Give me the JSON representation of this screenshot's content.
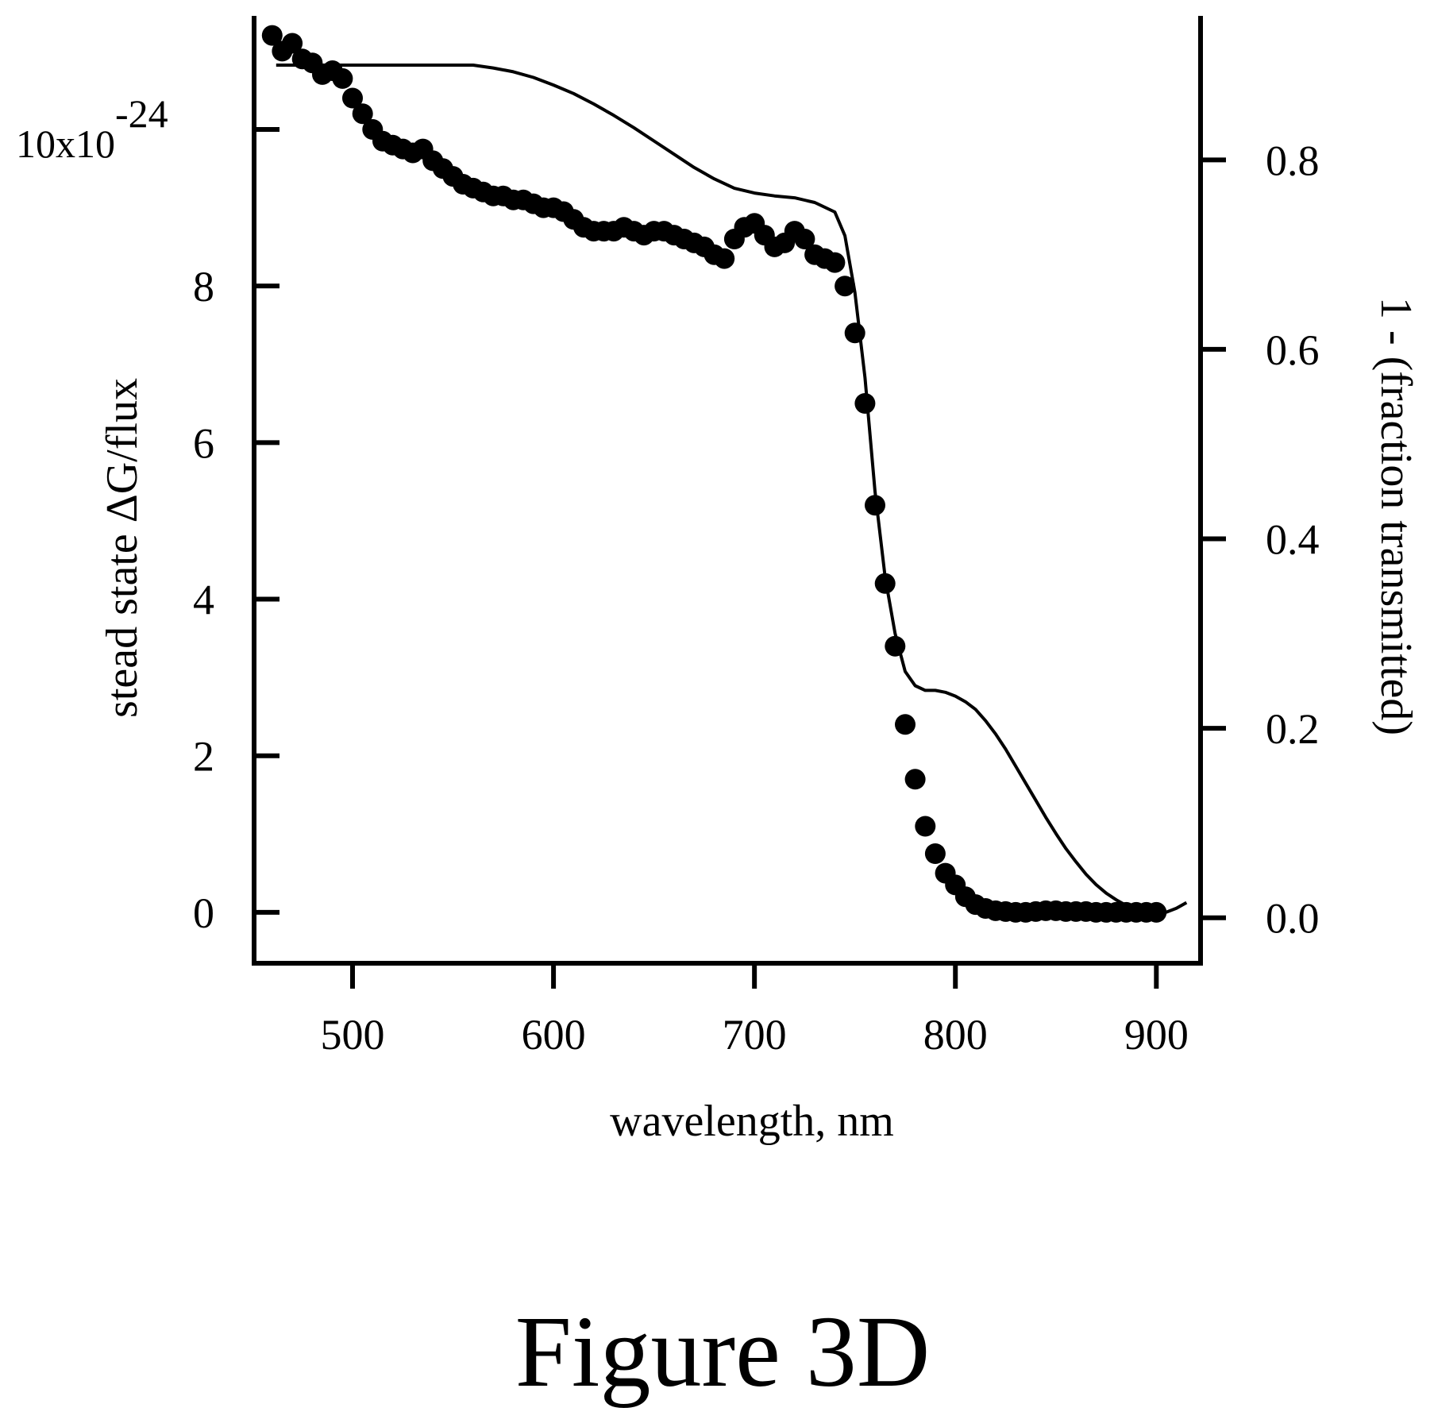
{
  "figure_label": "Figure 3D",
  "chart_data": {
    "type": "scatter",
    "xlabel": "wavelength, nm",
    "ylabel_left": "stead state ΔG/flux",
    "ylabel_right": "1 - (fraction transmitted)",
    "y_left_multiplier": "10x10",
    "y_left_multiplier_exp": "-24",
    "xlim": [
      451,
      922
    ],
    "ylim_left": [
      -0.65,
      11.45
    ],
    "ylim_right": [
      -0.048,
      0.952
    ],
    "x_ticks": [
      500,
      600,
      700,
      800,
      900
    ],
    "x_tick_labels": [
      "500",
      "600",
      "700",
      "800",
      "900"
    ],
    "y_left_ticks": [
      0,
      2,
      4,
      6,
      8,
      10
    ],
    "y_left_tick_labels": [
      "0",
      "2",
      "4",
      "6",
      "8",
      ""
    ],
    "y_right_ticks": [
      0.0,
      0.2,
      0.4,
      0.6,
      0.8
    ],
    "y_right_tick_labels": [
      "0.0",
      "0.2",
      "0.4",
      "0.6",
      "0.8"
    ],
    "grid": false,
    "series": [
      {
        "style": "markers",
        "axis": "left",
        "x": [
          460,
          465,
          470,
          475,
          480,
          485,
          490,
          495,
          500,
          505,
          510,
          515,
          520,
          525,
          530,
          535,
          540,
          545,
          550,
          555,
          560,
          565,
          570,
          575,
          580,
          585,
          590,
          595,
          600,
          605,
          610,
          615,
          620,
          625,
          630,
          635,
          640,
          645,
          650,
          655,
          660,
          665,
          670,
          675,
          680,
          685,
          690,
          695,
          700,
          705,
          710,
          715,
          720,
          725,
          730,
          735,
          740,
          745,
          750,
          755,
          760,
          765,
          770,
          775,
          780,
          785,
          790,
          795,
          800,
          805,
          810,
          815,
          820,
          825,
          830,
          835,
          840,
          845,
          850,
          855,
          860,
          865,
          870,
          875,
          880,
          885,
          890,
          895,
          900
        ],
        "y": [
          11.2,
          11.0,
          11.1,
          10.9,
          10.85,
          10.7,
          10.75,
          10.65,
          10.4,
          10.2,
          10.0,
          9.85,
          9.8,
          9.75,
          9.7,
          9.75,
          9.6,
          9.5,
          9.4,
          9.3,
          9.25,
          9.2,
          9.15,
          9.15,
          9.1,
          9.1,
          9.05,
          9.0,
          9.0,
          8.95,
          8.85,
          8.75,
          8.7,
          8.7,
          8.7,
          8.75,
          8.7,
          8.65,
          8.7,
          8.7,
          8.65,
          8.6,
          8.55,
          8.5,
          8.4,
          8.35,
          8.6,
          8.75,
          8.8,
          8.65,
          8.5,
          8.55,
          8.7,
          8.6,
          8.4,
          8.35,
          8.3,
          8.0,
          7.4,
          6.5,
          5.2,
          4.2,
          3.4,
          2.4,
          1.7,
          1.1,
          0.75,
          0.5,
          0.35,
          0.2,
          0.1,
          0.05,
          0.02,
          0.01,
          0.0,
          0.0,
          0.01,
          0.02,
          0.02,
          0.01,
          0.01,
          0.01,
          0.0,
          0.0,
          0.0,
          0.0,
          0.0,
          0.0,
          0.0
        ]
      },
      {
        "style": "line",
        "axis": "right",
        "x": [
          462,
          470,
          480,
          490,
          500,
          510,
          520,
          530,
          540,
          550,
          560,
          570,
          580,
          590,
          600,
          610,
          620,
          630,
          640,
          650,
          660,
          670,
          680,
          690,
          700,
          710,
          720,
          730,
          740,
          745,
          750,
          755,
          760,
          765,
          770,
          775,
          780,
          785,
          790,
          795,
          800,
          805,
          810,
          815,
          820,
          825,
          830,
          835,
          840,
          845,
          850,
          855,
          860,
          865,
          870,
          875,
          880,
          885,
          890,
          895,
          900,
          905,
          910,
          915
        ],
        "y": [
          0.9,
          0.9,
          0.9,
          0.9,
          0.9,
          0.9,
          0.9,
          0.9,
          0.9,
          0.9,
          0.9,
          0.897,
          0.893,
          0.887,
          0.879,
          0.87,
          0.859,
          0.847,
          0.834,
          0.82,
          0.806,
          0.792,
          0.78,
          0.77,
          0.765,
          0.762,
          0.76,
          0.755,
          0.745,
          0.72,
          0.66,
          0.57,
          0.45,
          0.36,
          0.3,
          0.26,
          0.245,
          0.24,
          0.24,
          0.238,
          0.234,
          0.228,
          0.22,
          0.208,
          0.194,
          0.178,
          0.16,
          0.142,
          0.124,
          0.106,
          0.089,
          0.073,
          0.059,
          0.046,
          0.035,
          0.026,
          0.019,
          0.013,
          0.008,
          0.005,
          0.004,
          0.006,
          0.01,
          0.016
        ]
      }
    ]
  }
}
